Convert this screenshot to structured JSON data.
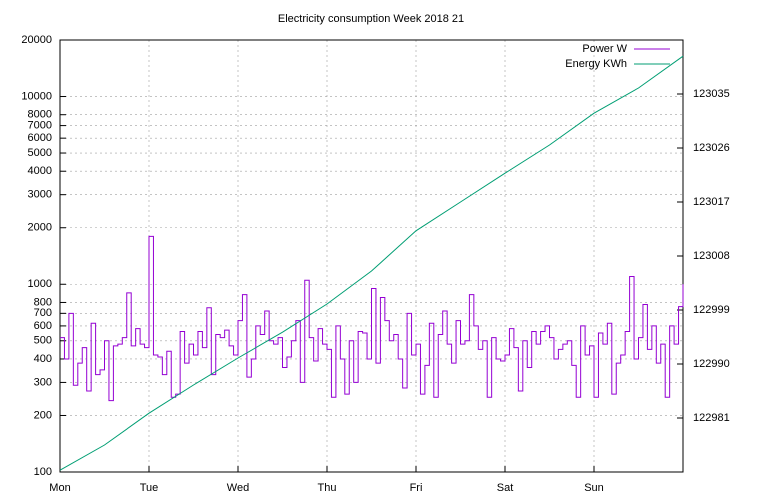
{
  "chart_data": {
    "type": "line",
    "title": "Electricity consumption Week 2018 21",
    "log_scale_y": true,
    "grid": true,
    "legend": "top-right",
    "xlim": [
      0,
      7
    ],
    "xticks": [
      {
        "value": 0,
        "label": "Mon"
      },
      {
        "value": 1,
        "label": "Tue"
      },
      {
        "value": 2,
        "label": "Wed"
      },
      {
        "value": 3,
        "label": "Thu"
      },
      {
        "value": 4,
        "label": "Fri"
      },
      {
        "value": 5,
        "label": "Sat"
      },
      {
        "value": 6,
        "label": "Sun"
      }
    ],
    "ylim": [
      100,
      20000
    ],
    "yticks": [
      100,
      200,
      300,
      400,
      500,
      600,
      700,
      800,
      1000,
      2000,
      3000,
      4000,
      5000,
      6000,
      7000,
      8000,
      10000,
      20000
    ],
    "y2lim": [
      122972,
      123044
    ],
    "y2ticks": [
      122981,
      122990,
      122999,
      123008,
      123017,
      123026,
      123035
    ],
    "series": [
      {
        "name": "Power W",
        "color": "#9400d3",
        "style": "steps",
        "x": [
          0,
          0.05,
          0.1,
          0.15,
          0.2,
          0.25,
          0.3,
          0.35,
          0.4,
          0.45,
          0.5,
          0.55,
          0.6,
          0.65,
          0.7,
          0.75,
          0.8,
          0.85,
          0.9,
          0.95,
          1,
          1.05,
          1.1,
          1.15,
          1.2,
          1.25,
          1.3,
          1.35,
          1.4,
          1.45,
          1.5,
          1.55,
          1.6,
          1.65,
          1.7,
          1.75,
          1.8,
          1.85,
          1.9,
          1.95,
          2,
          2.05,
          2.1,
          2.15,
          2.2,
          2.25,
          2.3,
          2.35,
          2.4,
          2.45,
          2.5,
          2.55,
          2.6,
          2.65,
          2.7,
          2.75,
          2.8,
          2.85,
          2.9,
          2.95,
          3,
          3.05,
          3.1,
          3.15,
          3.2,
          3.25,
          3.3,
          3.35,
          3.4,
          3.45,
          3.5,
          3.55,
          3.6,
          3.65,
          3.7,
          3.75,
          3.8,
          3.85,
          3.9,
          3.95,
          4,
          4.05,
          4.1,
          4.15,
          4.2,
          4.25,
          4.3,
          4.35,
          4.4,
          4.45,
          4.5,
          4.55,
          4.6,
          4.65,
          4.7,
          4.75,
          4.8,
          4.85,
          4.9,
          4.95,
          5,
          5.05,
          5.1,
          5.15,
          5.2,
          5.25,
          5.3,
          5.35,
          5.4,
          5.45,
          5.5,
          5.55,
          5.6,
          5.65,
          5.7,
          5.75,
          5.8,
          5.85,
          5.9,
          5.95,
          6,
          6.05,
          6.1,
          6.15,
          6.2,
          6.25,
          6.3,
          6.35,
          6.4,
          6.45,
          6.5,
          6.55,
          6.6,
          6.65,
          6.7,
          6.75,
          6.8,
          6.85,
          6.9,
          6.95,
          7
        ],
        "values": [
          520,
          400,
          700,
          290,
          380,
          460,
          270,
          620,
          330,
          350,
          500,
          240,
          470,
          480,
          520,
          900,
          470,
          580,
          480,
          460,
          1800,
          420,
          410,
          330,
          440,
          250,
          260,
          560,
          380,
          480,
          420,
          560,
          460,
          750,
          330,
          540,
          520,
          570,
          470,
          420,
          640,
          880,
          320,
          400,
          600,
          540,
          720,
          500,
          480,
          520,
          360,
          410,
          500,
          640,
          300,
          1050,
          520,
          390,
          580,
          480,
          450,
          250,
          600,
          400,
          260,
          500,
          300,
          560,
          550,
          400,
          950,
          380,
          850,
          640,
          500,
          540,
          400,
          280,
          700,
          420,
          480,
          260,
          370,
          620,
          250,
          540,
          720,
          480,
          380,
          640,
          480,
          500,
          880,
          600,
          450,
          500,
          250,
          520,
          400,
          390,
          420,
          580,
          460,
          270,
          500,
          360,
          560,
          480,
          560,
          600,
          520,
          400,
          450,
          480,
          500,
          370,
          250,
          600,
          420,
          470,
          250,
          550,
          480,
          620,
          260,
          380,
          420,
          560,
          1100,
          400,
          520,
          780,
          450,
          600,
          380,
          480,
          250,
          600,
          480,
          760,
          1000
        ]
      },
      {
        "name": "Energy KWh",
        "color": "#009e73",
        "axis": "y2",
        "x": [
          0,
          0.5,
          1,
          1.5,
          2,
          2.5,
          3,
          3.5,
          4,
          4.5,
          5,
          5.5,
          6,
          6.5,
          7
        ],
        "values": [
          122972.3,
          122976.5,
          122981.8,
          122986.5,
          122991,
          122995.3,
          123000,
          123005.5,
          123012.2,
          123017,
          123021.8,
          123026.5,
          123031.8,
          123036,
          123041.3
        ]
      }
    ]
  }
}
